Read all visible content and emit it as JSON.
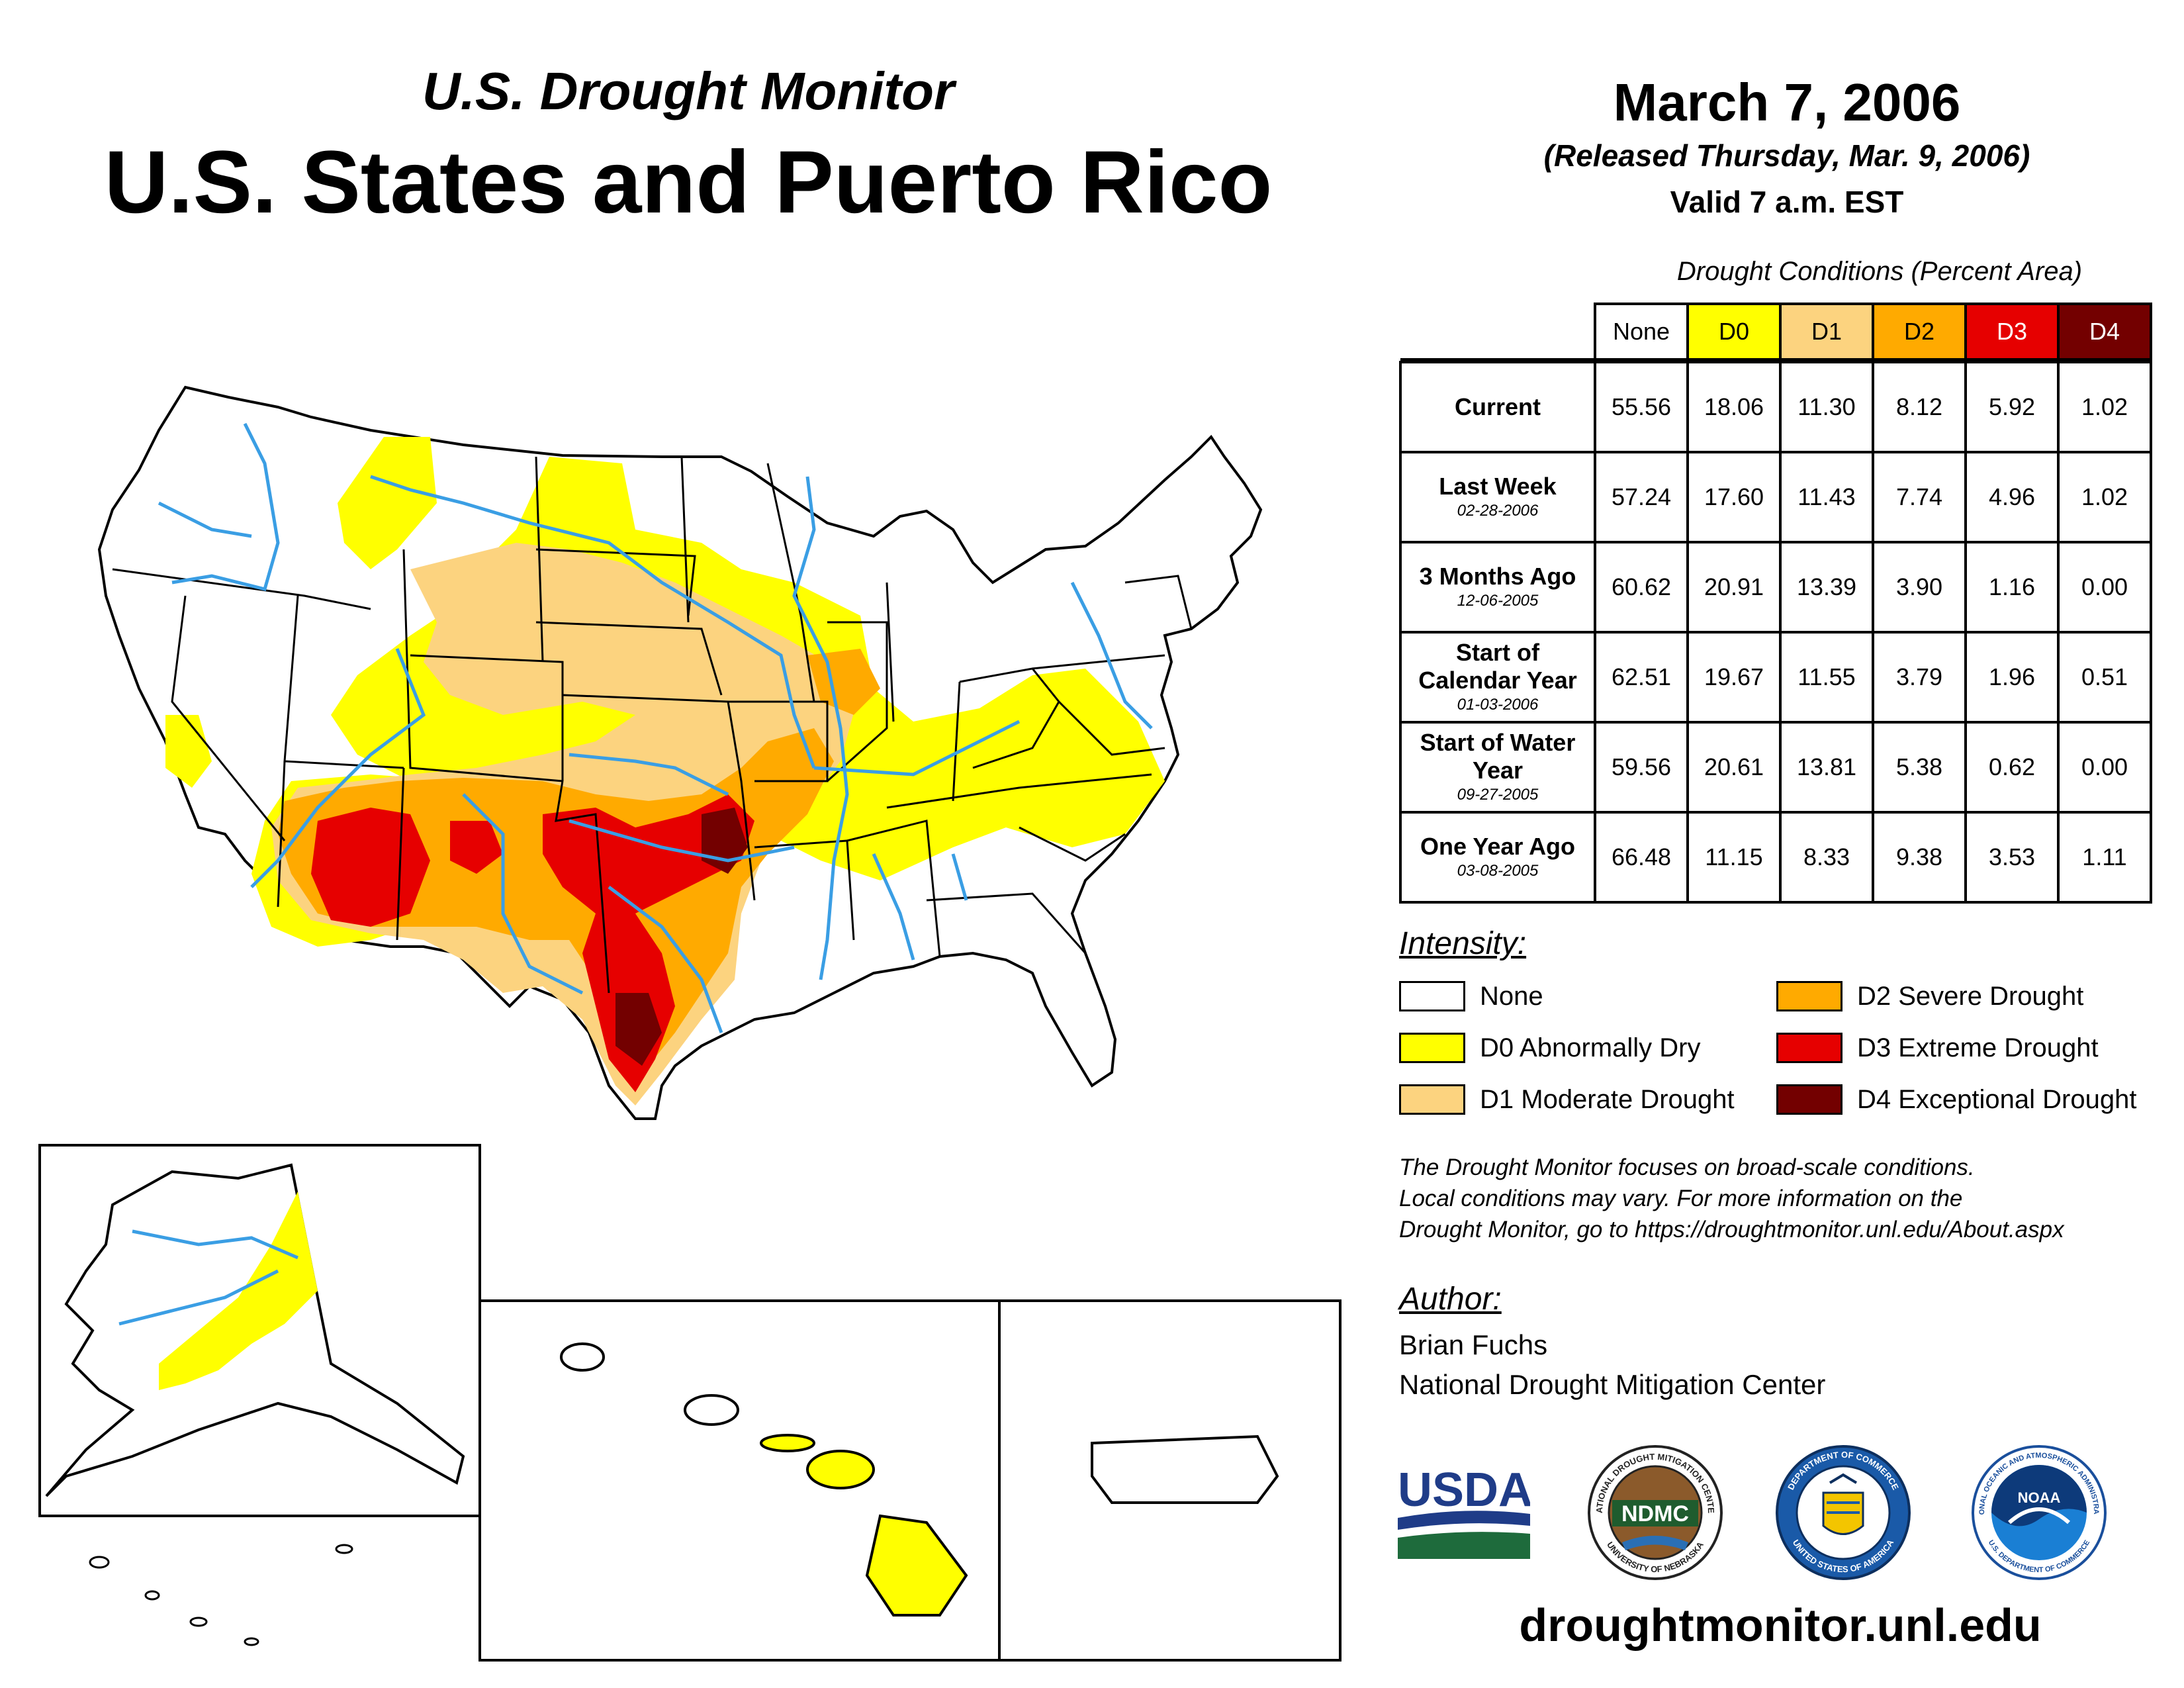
{
  "header": {
    "subtitle": "U.S. Drought Monitor",
    "title": "U.S. States and Puerto Rico",
    "date": "March 7, 2006",
    "released": "(Released Thursday, Mar. 9, 2006)",
    "valid": "Valid 7 a.m. EST"
  },
  "table": {
    "caption": "Drought Conditions (Percent Area)",
    "columns": [
      "None",
      "D0",
      "D1",
      "D2",
      "D3",
      "D4"
    ],
    "column_colors": [
      "#ffffff",
      "#ffff00",
      "#fcd37f",
      "#ffaa00",
      "#e60000",
      "#730000"
    ],
    "column_text_colors": [
      "#000000",
      "#000000",
      "#000000",
      "#000000",
      "#ffffff",
      "#ffffff"
    ],
    "rows": [
      {
        "label": "Current",
        "date": "",
        "values": [
          "55.56",
          "18.06",
          "11.30",
          "8.12",
          "5.92",
          "1.02"
        ]
      },
      {
        "label": "Last Week",
        "date": "02-28-2006",
        "values": [
          "57.24",
          "17.60",
          "11.43",
          "7.74",
          "4.96",
          "1.02"
        ]
      },
      {
        "label": "3 Months Ago",
        "date": "12-06-2005",
        "values": [
          "60.62",
          "20.91",
          "13.39",
          "3.90",
          "1.16",
          "0.00"
        ]
      },
      {
        "label": "Start of Calendar Year",
        "date": "01-03-2006",
        "values": [
          "62.51",
          "19.67",
          "11.55",
          "3.79",
          "1.96",
          "0.51"
        ]
      },
      {
        "label": "Start of Water Year",
        "date": "09-27-2005",
        "values": [
          "59.56",
          "20.61",
          "13.81",
          "5.38",
          "0.62",
          "0.00"
        ]
      },
      {
        "label": "One Year Ago",
        "date": "03-08-2005",
        "values": [
          "66.48",
          "11.15",
          "8.33",
          "9.38",
          "3.53",
          "1.11"
        ]
      }
    ]
  },
  "legend": {
    "title": "Intensity:",
    "items": [
      {
        "label": "None",
        "color": "#ffffff"
      },
      {
        "label": "D0 Abnormally Dry",
        "color": "#ffff00"
      },
      {
        "label": "D1 Moderate Drought",
        "color": "#fcd37f"
      },
      {
        "label": "D2 Severe Drought",
        "color": "#ffaa00"
      },
      {
        "label": "D3 Extreme Drought",
        "color": "#e60000"
      },
      {
        "label": "D4 Exceptional Drought",
        "color": "#730000"
      }
    ]
  },
  "note": {
    "line1": "The Drought Monitor focuses on broad-scale conditions.",
    "line2": "Local conditions may vary. For more information on the",
    "line3": "Drought Monitor, go to https://droughtmonitor.unl.edu/About.aspx"
  },
  "author": {
    "title": "Author:",
    "name": "Brian Fuchs",
    "org": "National Drought Mitigation Center"
  },
  "logos": {
    "usda": "USDA",
    "ndmc": "NDMC",
    "ndmc_ring_top": "NATIONAL DROUGHT MITIGATION CENTER",
    "ndmc_ring_bottom": "UNIVERSITY OF NEBRASKA",
    "commerce_ring_top": "DEPARTMENT OF COMMERCE",
    "commerce_ring_bottom": "UNITED STATES OF AMERICA",
    "noaa": "NOAA",
    "noaa_ring_top": "NATIONAL OCEANIC AND ATMOSPHERIC ADMINISTRATION",
    "noaa_ring_bottom": "U.S. DEPARTMENT OF COMMERCE"
  },
  "website": "droughtmonitor.unl.edu",
  "map": {
    "regions": [
      "Contiguous U.S.",
      "Alaska",
      "Hawaii",
      "Puerto Rico"
    ],
    "colors": {
      "none": "#ffffff",
      "d0": "#ffff00",
      "d1": "#fcd37f",
      "d2": "#ffaa00",
      "d3": "#e60000",
      "d4": "#730000",
      "river": "#3a9ee4",
      "border": "#000000"
    }
  }
}
